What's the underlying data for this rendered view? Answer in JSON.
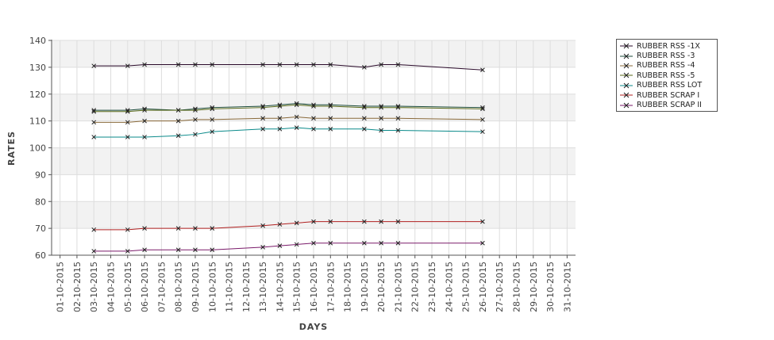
{
  "chart_data": {
    "type": "line",
    "title": "",
    "xlabel": "DAYS",
    "ylabel": "RATES",
    "ylim": [
      60,
      140
    ],
    "yticks": [
      60,
      70,
      80,
      90,
      100,
      110,
      120,
      130,
      140
    ],
    "grid": true,
    "legend_position": "top-right",
    "categories": [
      "01-10-2015",
      "02-10-2015",
      "03-10-2015",
      "04-10-2015",
      "05-10-2015",
      "06-10-2015",
      "07-10-2015",
      "08-10-2015",
      "09-10-2015",
      "10-10-2015",
      "11-10-2015",
      "12-10-2015",
      "13-10-2015",
      "14-10-2015",
      "15-10-2015",
      "16-10-2015",
      "17-10-2015",
      "18-10-2015",
      "19-10-2015",
      "20-10-2015",
      "21-10-2015",
      "22-10-2015",
      "23-10-2015",
      "24-10-2015",
      "25-10-2015",
      "26-10-2015",
      "27-10-2015",
      "28-10-2015",
      "29-10-2015",
      "30-10-2015",
      "31-10-2015"
    ],
    "x": [
      "03-10-2015",
      "05-10-2015",
      "06-10-2015",
      "08-10-2015",
      "09-10-2015",
      "10-10-2015",
      "13-10-2015",
      "14-10-2015",
      "15-10-2015",
      "16-10-2015",
      "17-10-2015",
      "19-10-2015",
      "20-10-2015",
      "21-10-2015",
      "26-10-2015"
    ],
    "series": [
      {
        "name": "RUBBER RSS -1X",
        "color": "#2a0a2a",
        "values": [
          130.5,
          130.5,
          131,
          131,
          131,
          131,
          131,
          131,
          131,
          131,
          131,
          130,
          131,
          131,
          129
        ]
      },
      {
        "name": "RUBBER RSS -3",
        "color": "#1a4a3a",
        "values": [
          114,
          114,
          114.5,
          114,
          114.5,
          115,
          115.5,
          116,
          116.5,
          116,
          116,
          115.5,
          115.5,
          115.5,
          115
        ]
      },
      {
        "name": "RUBBER RSS -4",
        "color": "#8a6a3a",
        "values": [
          109.5,
          109.5,
          110,
          110,
          110.5,
          110.5,
          111,
          111,
          111.5,
          111,
          111,
          111,
          111,
          111,
          110.5
        ]
      },
      {
        "name": "RUBBER RSS -5",
        "color": "#5a6a1a",
        "values": [
          113.5,
          113.5,
          114,
          114,
          114,
          114.5,
          115,
          115.5,
          116,
          115.5,
          115.5,
          115,
          115,
          115,
          114.5
        ]
      },
      {
        "name": "RUBBER RSS LOT",
        "color": "#0a8a8a",
        "values": [
          104,
          104,
          104,
          104.5,
          105,
          106,
          107,
          107,
          107.5,
          107,
          107,
          107,
          106.5,
          106.5,
          106
        ]
      },
      {
        "name": "RUBBER SCRAP I",
        "color": "#b02020",
        "values": [
          69.5,
          69.5,
          70,
          70,
          70,
          70,
          71,
          71.5,
          72,
          72.5,
          72.5,
          72.5,
          72.5,
          72.5,
          72.5
        ]
      },
      {
        "name": "RUBBER SCRAP II",
        "color": "#7a1a6a",
        "values": [
          61.5,
          61.5,
          62,
          62,
          62,
          62,
          63,
          63.5,
          64,
          64.5,
          64.5,
          64.5,
          64.5,
          64.5,
          64.5
        ]
      }
    ]
  }
}
